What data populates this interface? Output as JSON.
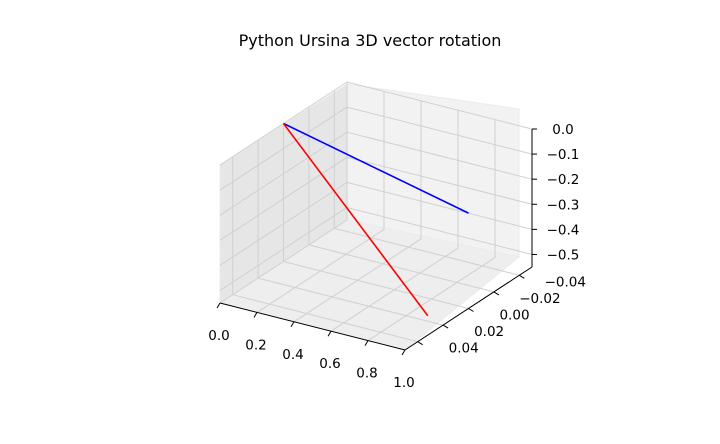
{
  "chart_data": {
    "type": "line3d",
    "title": "Python Ursina 3D vector rotation",
    "xlabel": "",
    "ylabel": "",
    "zlabel": "",
    "xlim": [
      0.0,
      1.0
    ],
    "ylim": [
      -0.05,
      0.05
    ],
    "zlim": [
      -0.55,
      0.0
    ],
    "x_ticks": [
      "0.0",
      "0.2",
      "0.4",
      "0.6",
      "0.8",
      "1.0"
    ],
    "y_ticks": [
      "−0.04",
      "−0.02",
      "0.00",
      "0.02",
      "0.04"
    ],
    "z_ticks": [
      "0.0",
      "−0.1",
      "−0.2",
      "−0.3",
      "−0.4",
      "−0.5"
    ],
    "grid": true,
    "series": [
      {
        "color": "#0000ff",
        "x": [
          0.0,
          1.0
        ],
        "y": [
          0.0,
          0.0
        ],
        "z": [
          0.0,
          -0.17
        ]
      },
      {
        "color": "#ff0000",
        "x": [
          0.0,
          0.78
        ],
        "y": [
          0.0,
          0.0
        ],
        "z": [
          0.0,
          -0.62
        ]
      }
    ]
  }
}
